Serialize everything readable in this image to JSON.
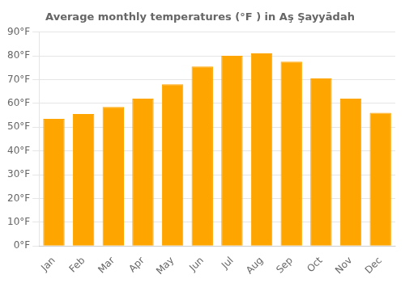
{
  "chart_data": {
    "type": "bar",
    "title": "Average monthly temperatures (°F ) in Aş Şayyādah",
    "categories": [
      "Jan",
      "Feb",
      "Mar",
      "Apr",
      "May",
      "Jun",
      "Jul",
      "Aug",
      "Sep",
      "Oct",
      "Nov",
      "Dec"
    ],
    "values": [
      53.5,
      55.5,
      58.5,
      62.0,
      68.0,
      75.5,
      80.0,
      81.0,
      77.5,
      70.5,
      62.0,
      56.0
    ],
    "color": "#FFA500",
    "ylim": [
      0,
      90
    ],
    "yticks": [
      {
        "value": 0,
        "label": "0°F"
      },
      {
        "value": 10,
        "label": "10°F"
      },
      {
        "value": 20,
        "label": "20°F"
      },
      {
        "value": 30,
        "label": "30°F"
      },
      {
        "value": 40,
        "label": "40°F"
      },
      {
        "value": 50,
        "label": "50°F"
      },
      {
        "value": 60,
        "label": "60°F"
      },
      {
        "value": 70,
        "label": "70°F"
      },
      {
        "value": 80,
        "label": "80°F"
      },
      {
        "value": 90,
        "label": "90°F"
      }
    ],
    "grid": true
  }
}
